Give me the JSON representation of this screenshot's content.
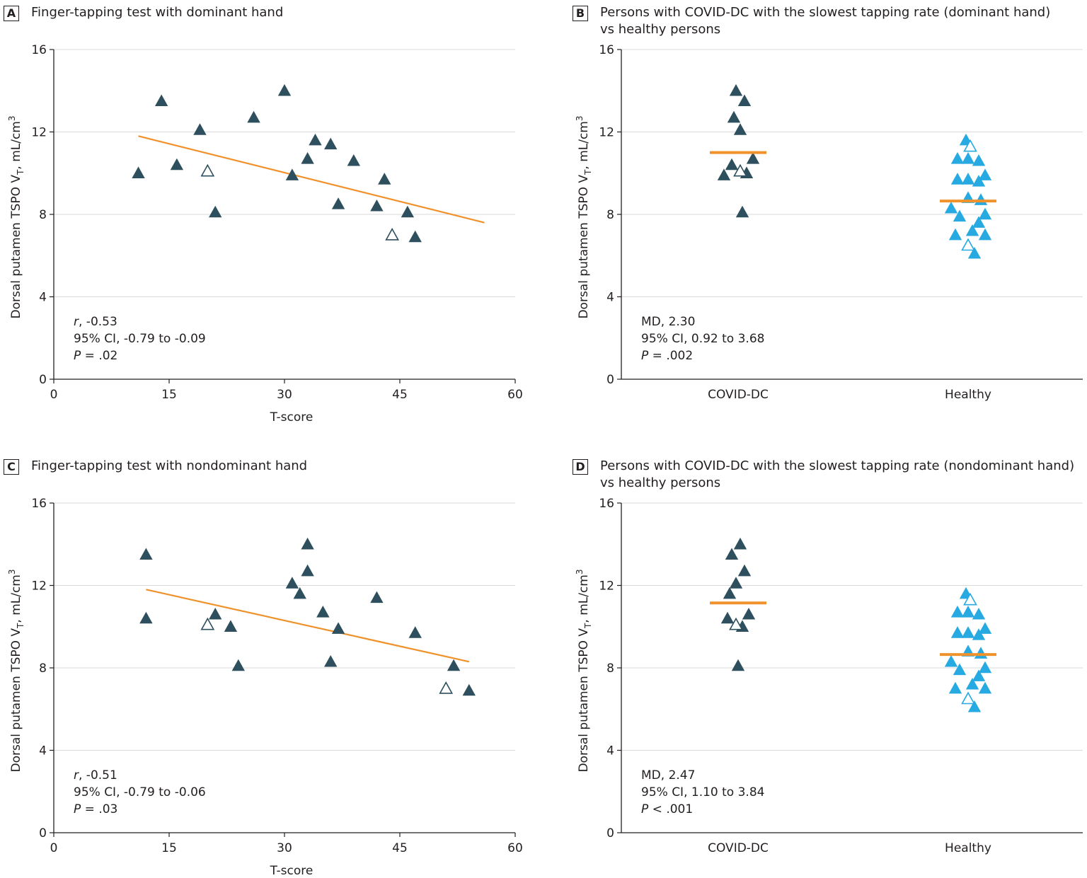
{
  "colors": {
    "dark": "#2e4f5d",
    "light": "#27a9e1",
    "fit": "#f0922b",
    "grid": "#d9d9d9",
    "axis": "#231f20"
  },
  "chart_data": [
    {
      "id": "A",
      "type": "scatter",
      "letter": "A",
      "title": "Finger-tapping test with dominant hand",
      "xlabel": "T-score",
      "ylabel": "Dorsal putamen TSPO V",
      "ylabel_sub": "T",
      "ylabel_tail": ", mL/cm",
      "ylabel_sup": "3",
      "xlim": [
        0,
        60
      ],
      "ylim": [
        0,
        16
      ],
      "xticks": [
        "0",
        "15",
        "30",
        "45",
        "60"
      ],
      "yticks": [
        "0",
        "4",
        "8",
        "12",
        "16"
      ],
      "grid": true,
      "stats": [
        {
          "italic": "r",
          "rest": ", -0.53"
        },
        {
          "italic": "",
          "rest": "95% CI, -0.79 to -0.09"
        },
        {
          "italic": "P",
          "rest": " = .02"
        }
      ],
      "points_filled": [
        [
          11,
          10
        ],
        [
          14,
          13.5
        ],
        [
          16,
          10.4
        ],
        [
          19,
          12.1
        ],
        [
          21,
          8.1
        ],
        [
          26,
          12.7
        ],
        [
          30,
          14
        ],
        [
          31,
          9.9
        ],
        [
          33,
          10.7
        ],
        [
          34,
          11.6
        ],
        [
          36,
          11.4
        ],
        [
          37,
          8.5
        ],
        [
          39,
          10.6
        ],
        [
          42,
          8.4
        ],
        [
          43,
          9.7
        ],
        [
          46,
          8.1
        ],
        [
          47,
          6.9
        ]
      ],
      "points_open": [
        [
          20,
          10.1
        ],
        [
          44,
          7
        ]
      ],
      "fit": [
        [
          11,
          11.8
        ],
        [
          56,
          7.6
        ]
      ]
    },
    {
      "id": "B",
      "type": "scatter",
      "letter": "B",
      "title": "Persons with COVID-DC with the slowest tapping rate (dominant hand)",
      "title2": "vs healthy persons",
      "ylabel": "Dorsal putamen TSPO V",
      "ylabel_sub": "T",
      "ylabel_tail": ", mL/cm",
      "ylabel_sup": "3",
      "categories": [
        "COVID-DC",
        "Healthy"
      ],
      "ylim": [
        0,
        16
      ],
      "yticks": [
        "0",
        "4",
        "8",
        "12",
        "16"
      ],
      "grid": true,
      "stats": [
        {
          "italic": "",
          "rest": "MD, 2.30"
        },
        {
          "italic": "",
          "rest": "95% CI, 0.92 to 3.68"
        },
        {
          "italic": "P",
          "rest": " = .002"
        }
      ],
      "groups": [
        {
          "name": "COVID-DC",
          "color": "dark",
          "mean": 11.0,
          "points_filled": [
            [
              -0.2,
              9.9
            ],
            [
              -0.09,
              10.4
            ],
            [
              -0.06,
              12.7
            ],
            [
              -0.03,
              14
            ],
            [
              0.03,
              12.1
            ],
            [
              0.06,
              8.1
            ],
            [
              0.12,
              10
            ],
            [
              0.09,
              13.5
            ],
            [
              0.21,
              10.7
            ]
          ],
          "points_open": [
            [
              0.03,
              10.1
            ]
          ]
        },
        {
          "name": "Healthy",
          "color": "light",
          "mean": 8.65,
          "points_filled": [
            [
              -0.24,
              8.3
            ],
            [
              -0.18,
              7
            ],
            [
              -0.15,
              10.7
            ],
            [
              -0.15,
              9.7
            ],
            [
              -0.12,
              7.9
            ],
            [
              -0.0,
              8.8
            ],
            [
              -0.03,
              11.6
            ],
            [
              0.0,
              10.7
            ],
            [
              0.0,
              9.7
            ],
            [
              0.06,
              7.2
            ],
            [
              0.09,
              6.1
            ],
            [
              0.15,
              10.6
            ],
            [
              0.15,
              9.6
            ],
            [
              0.15,
              7.6
            ],
            [
              0.18,
              8.7
            ],
            [
              0.24,
              9.9
            ],
            [
              0.24,
              8
            ],
            [
              0.24,
              7
            ]
          ],
          "points_open": [
            [
              0.03,
              11.3
            ],
            [
              0.0,
              6.5
            ]
          ]
        }
      ]
    },
    {
      "id": "C",
      "type": "scatter",
      "letter": "C",
      "title": "Finger-tapping test with nondominant hand",
      "xlabel": "T-score",
      "ylabel": "Dorsal putamen TSPO V",
      "ylabel_sub": "T",
      "ylabel_tail": ", mL/cm",
      "ylabel_sup": "3",
      "xlim": [
        0,
        60
      ],
      "ylim": [
        0,
        16
      ],
      "xticks": [
        "0",
        "15",
        "30",
        "45",
        "60"
      ],
      "yticks": [
        "0",
        "4",
        "8",
        "12",
        "16"
      ],
      "grid": true,
      "stats": [
        {
          "italic": "r",
          "rest": ", -0.51"
        },
        {
          "italic": "",
          "rest": "95% CI, -0.79 to -0.06"
        },
        {
          "italic": "P",
          "rest": " = .03"
        }
      ],
      "points_filled": [
        [
          12,
          13.5
        ],
        [
          12,
          10.4
        ],
        [
          21,
          10.6
        ],
        [
          23,
          10
        ],
        [
          24,
          8.1
        ],
        [
          31,
          12.1
        ],
        [
          32,
          11.6
        ],
        [
          33,
          14
        ],
        [
          33,
          12.7
        ],
        [
          35,
          10.7
        ],
        [
          36,
          8.3
        ],
        [
          37,
          9.9
        ],
        [
          42,
          11.4
        ],
        [
          47,
          9.7
        ],
        [
          52,
          8.1
        ],
        [
          54,
          6.9
        ]
      ],
      "points_open": [
        [
          20,
          10.1
        ],
        [
          51,
          7
        ]
      ],
      "fit": [
        [
          12,
          11.8
        ],
        [
          54,
          8.3
        ]
      ]
    },
    {
      "id": "D",
      "type": "scatter",
      "letter": "D",
      "title": "Persons with COVID-DC with the slowest tapping rate (nondominant hand)",
      "title2": "vs healthy persons",
      "ylabel": "Dorsal putamen TSPO V",
      "ylabel_sub": "T",
      "ylabel_tail": ", mL/cm",
      "ylabel_sup": "3",
      "categories": [
        "COVID-DC",
        "Healthy"
      ],
      "ylim": [
        0,
        16
      ],
      "yticks": [
        "0",
        "4",
        "8",
        "12",
        "16"
      ],
      "grid": true,
      "stats": [
        {
          "italic": "",
          "rest": "MD, 2.47"
        },
        {
          "italic": "",
          "rest": "95% CI, 1.10 to 3.84"
        },
        {
          "italic": "P",
          "rest": " < .001"
        }
      ],
      "groups": [
        {
          "name": "COVID-DC",
          "color": "dark",
          "mean": 11.15,
          "points_filled": [
            [
              -0.15,
              10.4
            ],
            [
              -0.12,
              11.6
            ],
            [
              -0.09,
              13.5
            ],
            [
              -0.03,
              12.1
            ],
            [
              0.0,
              8.1
            ],
            [
              0.03,
              14
            ],
            [
              0.06,
              10
            ],
            [
              0.09,
              12.7
            ],
            [
              0.15,
              10.6
            ]
          ],
          "points_open": [
            [
              -0.03,
              10.1
            ]
          ]
        },
        {
          "name": "Healthy",
          "color": "light",
          "mean": 8.65,
          "points_filled": [
            [
              -0.24,
              8.3
            ],
            [
              -0.18,
              7
            ],
            [
              -0.15,
              10.7
            ],
            [
              -0.15,
              9.7
            ],
            [
              -0.12,
              7.9
            ],
            [
              -0.0,
              8.8
            ],
            [
              -0.03,
              11.6
            ],
            [
              0.0,
              10.7
            ],
            [
              0.0,
              9.7
            ],
            [
              0.06,
              7.2
            ],
            [
              0.09,
              6.1
            ],
            [
              0.15,
              10.6
            ],
            [
              0.15,
              9.6
            ],
            [
              0.15,
              7.6
            ],
            [
              0.18,
              8.7
            ],
            [
              0.24,
              9.9
            ],
            [
              0.24,
              8
            ],
            [
              0.24,
              7
            ]
          ],
          "points_open": [
            [
              0.03,
              11.3
            ],
            [
              0.0,
              6.5
            ]
          ]
        }
      ]
    }
  ]
}
